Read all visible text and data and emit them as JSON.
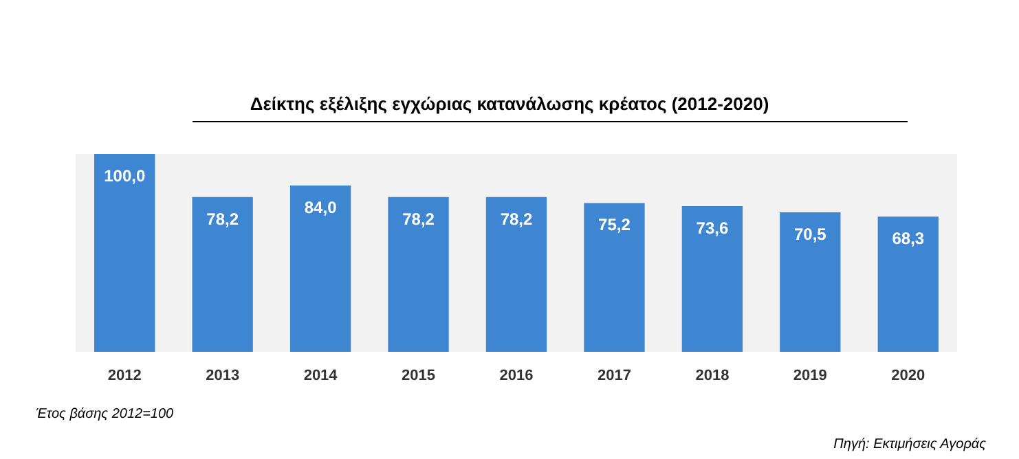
{
  "chart_data": {
    "type": "bar",
    "title": "Δείκτης εξέλιξης εγχώριας κατανάλωσης κρέατος (2012-2020)",
    "categories": [
      "2012",
      "2013",
      "2014",
      "2015",
      "2016",
      "2017",
      "2018",
      "2019",
      "2020"
    ],
    "values": [
      100,
      78.2,
      84,
      78.2,
      78.2,
      75.2,
      73.6,
      70.5,
      68.3
    ],
    "value_labels": [
      "100,0",
      "78,2",
      "84,0",
      "78,2",
      "78,2",
      "75,2",
      "73,6",
      "70,5",
      "68,3"
    ],
    "color": "#3f86d2",
    "annotations": [
      "Έτος βάσης 2012=100",
      "Πηγή: Εκτιμήσεις Αγοράς"
    ]
  }
}
